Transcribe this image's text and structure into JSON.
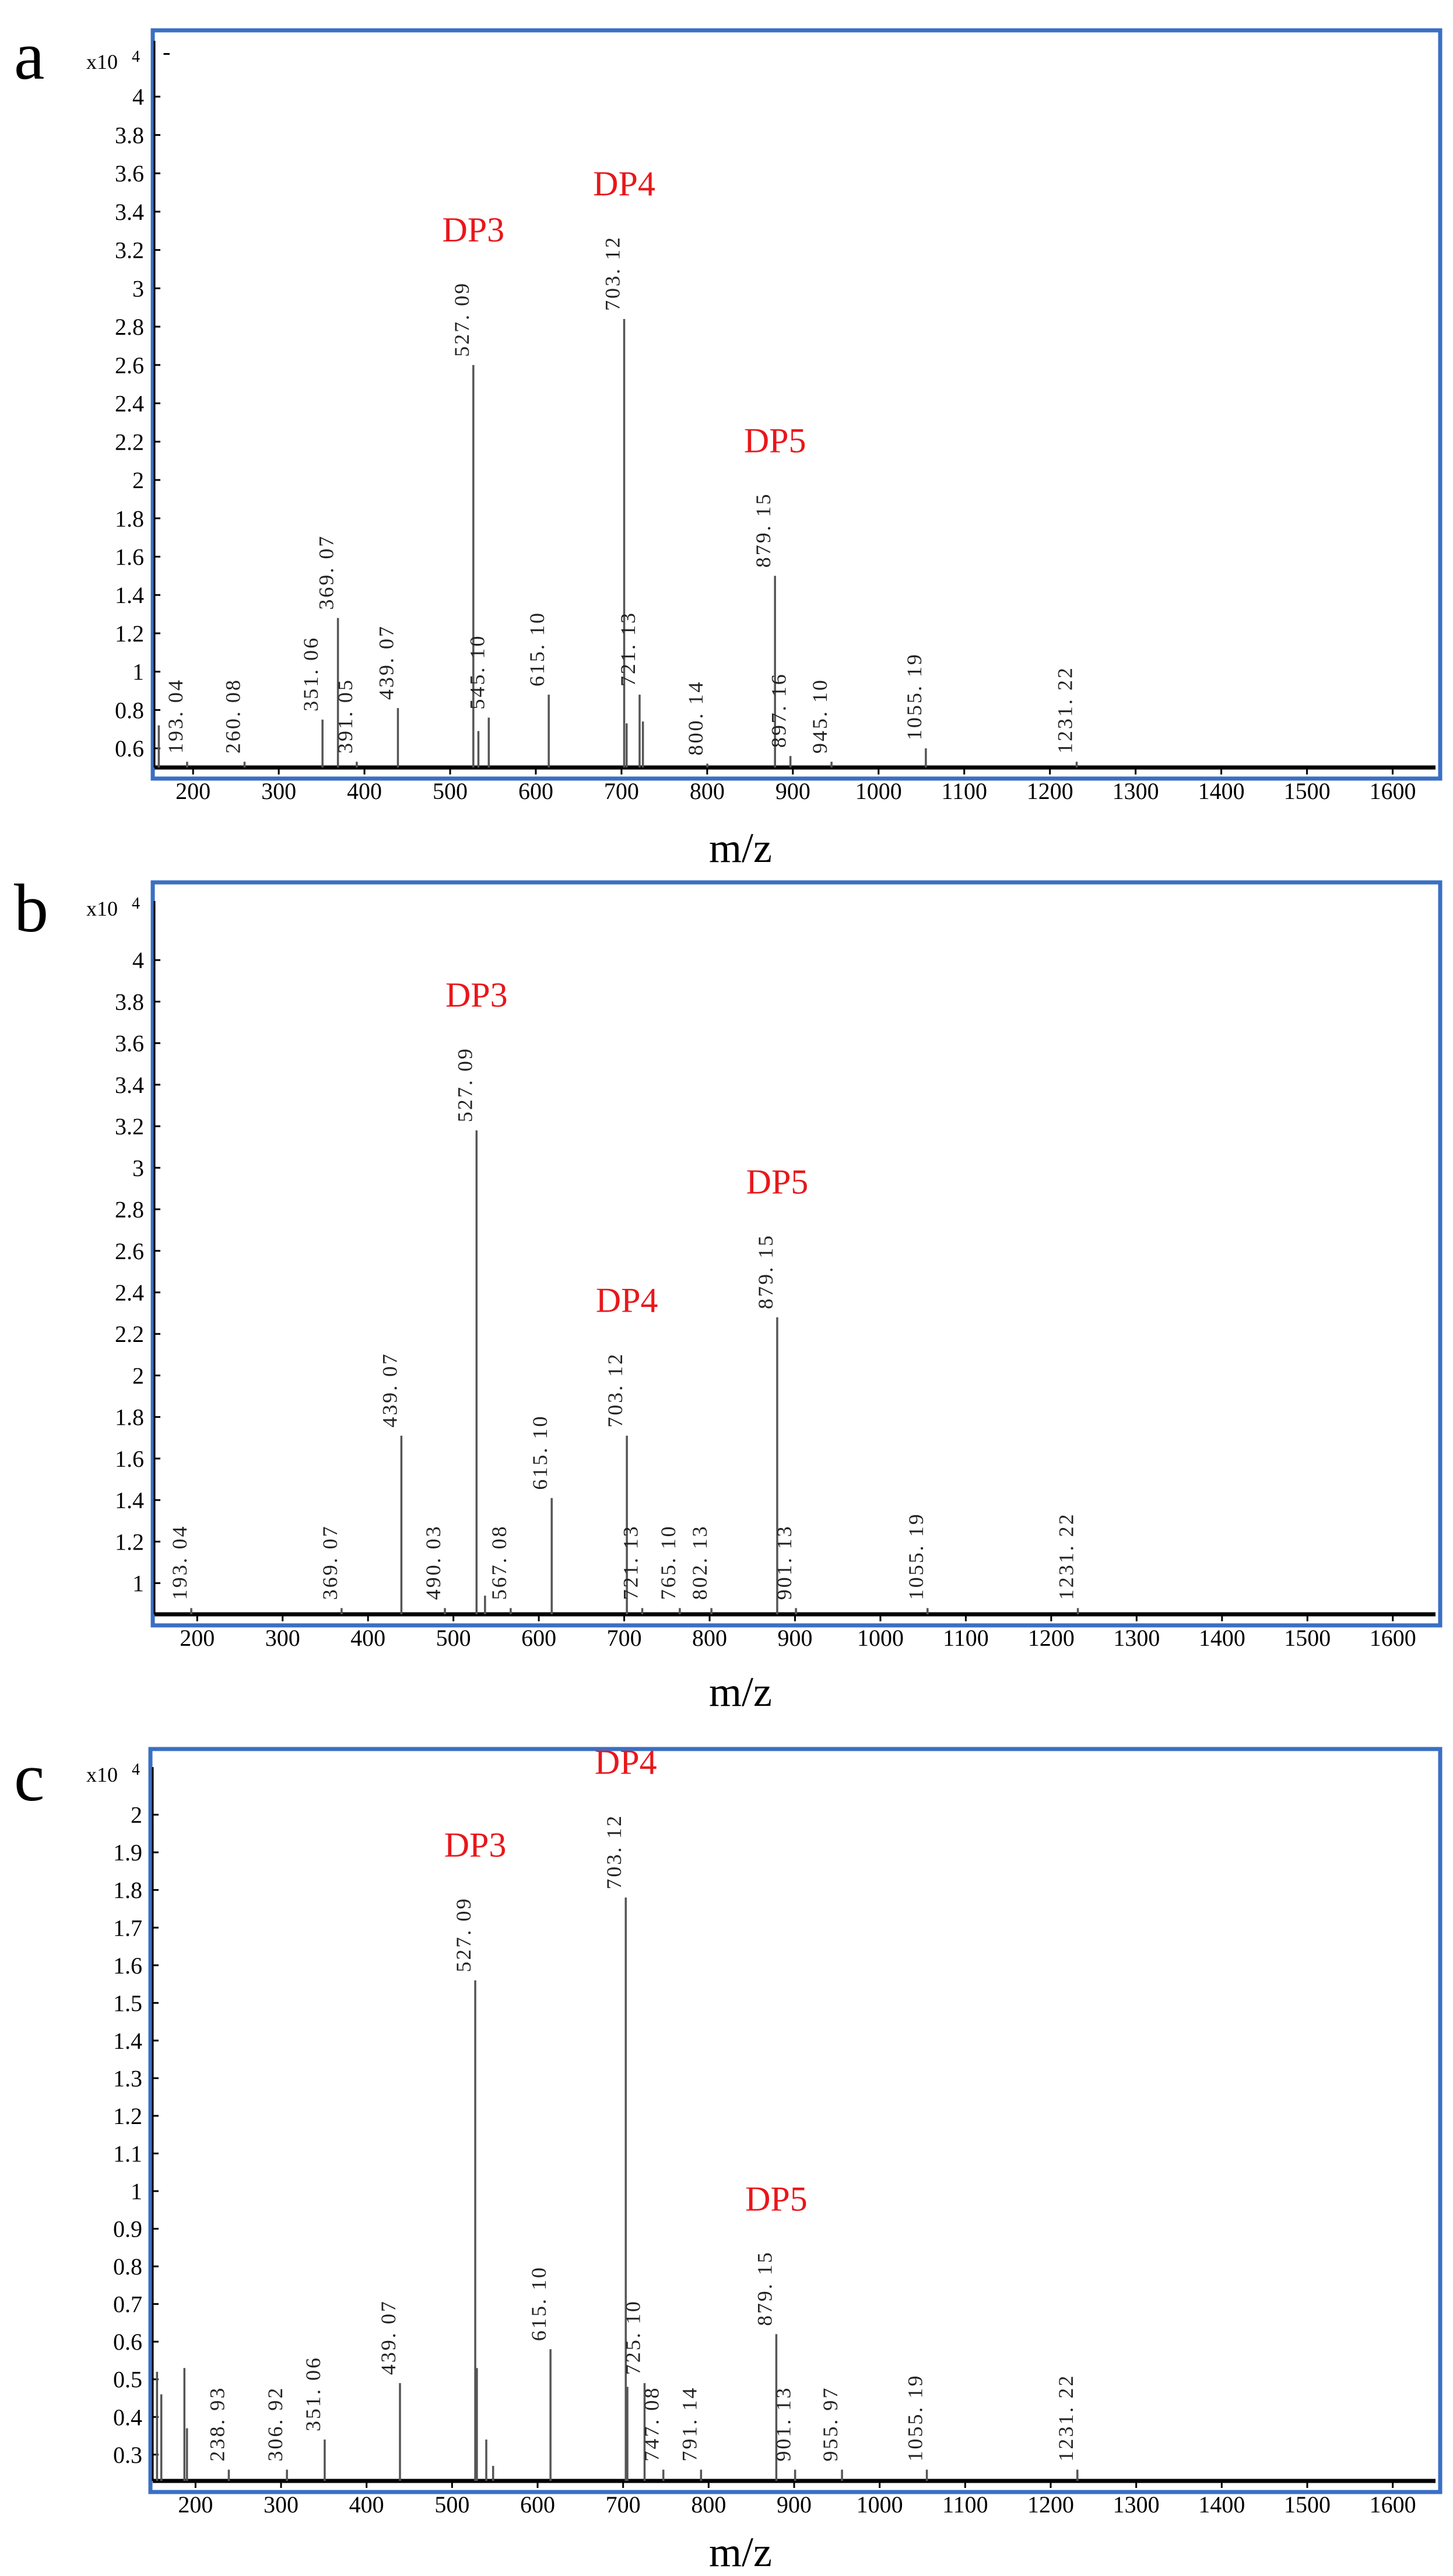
{
  "chart_data": [
    {
      "type": "bar",
      "panel": "a",
      "xlabel": "m/z",
      "y_multiplier": "x10",
      "y_multiplier_exp": "4",
      "xlim": [
        155,
        1650
      ],
      "ylim": [
        0.5,
        4.2
      ],
      "xticks": [
        200,
        300,
        400,
        500,
        600,
        700,
        800,
        900,
        1000,
        1100,
        1200,
        1300,
        1400,
        1500,
        1600
      ],
      "yticks": [
        0.6,
        0.8,
        1,
        1.2,
        1.4,
        1.6,
        1.8,
        2,
        2.2,
        2.4,
        2.6,
        2.8,
        3,
        3.2,
        3.4,
        3.6,
        3.8,
        4
      ],
      "ytick_labels": [
        "0.6",
        "0.8",
        "1",
        "1.2",
        "1.4",
        "1.6",
        "1.8",
        "2",
        "2.2",
        "2.4",
        "2.6",
        "2.8",
        "3",
        "3.2",
        "3.4",
        "3.6",
        "3.8",
        "4"
      ],
      "top_marker": "-",
      "peaks": [
        {
          "x": 160,
          "y": 0.72,
          "label": ""
        },
        {
          "x": 193.04,
          "y": 0.53,
          "label": "193. 04"
        },
        {
          "x": 260.08,
          "y": 0.53,
          "label": "260. 08"
        },
        {
          "x": 351.06,
          "y": 0.75,
          "label": "351. 06"
        },
        {
          "x": 369.07,
          "y": 1.28,
          "label": "369. 07"
        },
        {
          "x": 391.05,
          "y": 0.53,
          "label": "391. 05"
        },
        {
          "x": 439.07,
          "y": 0.81,
          "label": "439. 07"
        },
        {
          "x": 527.09,
          "y": 2.6,
          "label": "527. 09"
        },
        {
          "x": 533,
          "y": 0.69,
          "label": ""
        },
        {
          "x": 545.1,
          "y": 0.76,
          "label": "545. 10"
        },
        {
          "x": 615.1,
          "y": 0.88,
          "label": "615. 10"
        },
        {
          "x": 703.12,
          "y": 2.84,
          "label": "703. 12"
        },
        {
          "x": 706,
          "y": 0.73,
          "label": ""
        },
        {
          "x": 721.13,
          "y": 0.88,
          "label": "721. 13"
        },
        {
          "x": 725,
          "y": 0.74,
          "label": ""
        },
        {
          "x": 800.14,
          "y": 0.52,
          "label": "800. 14"
        },
        {
          "x": 879.15,
          "y": 1.5,
          "label": "879. 15"
        },
        {
          "x": 897.16,
          "y": 0.56,
          "label": "897. 16"
        },
        {
          "x": 945.1,
          "y": 0.53,
          "label": "945. 10"
        },
        {
          "x": 1055.19,
          "y": 0.6,
          "label": "1055. 19"
        },
        {
          "x": 1231.22,
          "y": 0.53,
          "label": "1231. 22"
        }
      ],
      "annotations": [
        {
          "text": "DP3",
          "x": 527.09,
          "y": 2.6
        },
        {
          "text": "DP4",
          "x": 703.12,
          "y": 2.84
        },
        {
          "text": "DP5",
          "x": 879.15,
          "y": 1.5
        }
      ]
    },
    {
      "type": "bar",
      "panel": "b",
      "xlabel": "m/z",
      "y_multiplier": "x10",
      "y_multiplier_exp": "4",
      "xlim": [
        150,
        1650
      ],
      "ylim": [
        0.85,
        4.2
      ],
      "xticks": [
        200,
        300,
        400,
        500,
        600,
        700,
        800,
        900,
        1000,
        1100,
        1200,
        1300,
        1400,
        1500,
        1600
      ],
      "yticks": [
        1,
        1.2,
        1.4,
        1.6,
        1.8,
        2,
        2.2,
        2.4,
        2.6,
        2.8,
        3,
        3.2,
        3.4,
        3.6,
        3.8,
        4
      ],
      "ytick_labels": [
        "1",
        "1.2",
        "1.4",
        "1.6",
        "1.8",
        "2",
        "2.2",
        "2.4",
        "2.6",
        "2.8",
        "3",
        "3.2",
        "3.4",
        "3.6",
        "3.8",
        "4"
      ],
      "top_marker": "",
      "peaks": [
        {
          "x": 193.04,
          "y": 0.88,
          "label": "193. 04"
        },
        {
          "x": 369.07,
          "y": 0.88,
          "label": "369. 07"
        },
        {
          "x": 439.07,
          "y": 1.71,
          "label": "439. 07"
        },
        {
          "x": 490.03,
          "y": 0.88,
          "label": "490. 03"
        },
        {
          "x": 527.09,
          "y": 3.18,
          "label": "527. 09"
        },
        {
          "x": 537,
          "y": 0.94,
          "label": ""
        },
        {
          "x": 567.08,
          "y": 0.88,
          "label": "567. 08"
        },
        {
          "x": 615.1,
          "y": 1.41,
          "label": "615. 10"
        },
        {
          "x": 703.12,
          "y": 1.71,
          "label": "703. 12"
        },
        {
          "x": 721.13,
          "y": 0.88,
          "label": "721. 13"
        },
        {
          "x": 765.1,
          "y": 0.88,
          "label": "765. 10"
        },
        {
          "x": 802.13,
          "y": 0.88,
          "label": "802. 13"
        },
        {
          "x": 879.15,
          "y": 2.28,
          "label": "879. 15"
        },
        {
          "x": 901.13,
          "y": 0.88,
          "label": "901. 13"
        },
        {
          "x": 1055.19,
          "y": 0.88,
          "label": "1055. 19"
        },
        {
          "x": 1231.22,
          "y": 0.88,
          "label": "1231. 22"
        }
      ],
      "annotations": [
        {
          "text": "DP3",
          "x": 527.09,
          "y": 3.18
        },
        {
          "text": "DP4",
          "x": 703.12,
          "y": 1.71
        },
        {
          "text": "DP5",
          "x": 879.15,
          "y": 2.28
        }
      ]
    },
    {
      "type": "bar",
      "panel": "c",
      "xlabel": "m/z",
      "y_multiplier": "x10",
      "y_multiplier_exp": "4",
      "xlim": [
        150,
        1650
      ],
      "ylim": [
        0.23,
        2.08
      ],
      "xticks": [
        200,
        300,
        400,
        500,
        600,
        700,
        800,
        900,
        1000,
        1100,
        1200,
        1300,
        1400,
        1500,
        1600
      ],
      "yticks": [
        0.3,
        0.4,
        0.5,
        0.6,
        0.7,
        0.8,
        0.9,
        1,
        1.1,
        1.2,
        1.3,
        1.4,
        1.5,
        1.6,
        1.7,
        1.8,
        1.9,
        2
      ],
      "ytick_labels": [
        "0.3",
        "0.4",
        "0.5",
        "0.6",
        "0.7",
        "0.8",
        "0.9",
        "1",
        "1.1",
        "1.2",
        "1.3",
        "1.4",
        "1.5",
        "1.6",
        "1.7",
        "1.8",
        "1.9",
        "2"
      ],
      "top_marker": "",
      "peaks": [
        {
          "x": 155,
          "y": 0.52,
          "label": ""
        },
        {
          "x": 160,
          "y": 0.46,
          "label": ""
        },
        {
          "x": 187,
          "y": 0.53,
          "label": ""
        },
        {
          "x": 190,
          "y": 0.37,
          "label": ""
        },
        {
          "x": 238.93,
          "y": 0.26,
          "label": "238. 93"
        },
        {
          "x": 306.92,
          "y": 0.26,
          "label": "306. 92"
        },
        {
          "x": 351.06,
          "y": 0.34,
          "label": "351. 06"
        },
        {
          "x": 439.07,
          "y": 0.49,
          "label": "439. 07"
        },
        {
          "x": 527.09,
          "y": 1.56,
          "label": "527. 09"
        },
        {
          "x": 529,
          "y": 0.53,
          "label": ""
        },
        {
          "x": 540,
          "y": 0.34,
          "label": ""
        },
        {
          "x": 548,
          "y": 0.27,
          "label": ""
        },
        {
          "x": 615.1,
          "y": 0.58,
          "label": "615. 10"
        },
        {
          "x": 703.12,
          "y": 1.78,
          "label": "703. 12"
        },
        {
          "x": 705,
          "y": 0.48,
          "label": ""
        },
        {
          "x": 725.1,
          "y": 0.49,
          "label": "725. 10"
        },
        {
          "x": 747.08,
          "y": 0.26,
          "label": "747. 08"
        },
        {
          "x": 791.14,
          "y": 0.26,
          "label": "791. 14"
        },
        {
          "x": 879.15,
          "y": 0.62,
          "label": "879. 15"
        },
        {
          "x": 901.13,
          "y": 0.26,
          "label": "901. 13"
        },
        {
          "x": 955.97,
          "y": 0.26,
          "label": "955. 97"
        },
        {
          "x": 1055.19,
          "y": 0.26,
          "label": "1055. 19"
        },
        {
          "x": 1231.22,
          "y": 0.26,
          "label": "1231. 22"
        }
      ],
      "annotations": [
        {
          "text": "DP3",
          "x": 527.09,
          "y": 1.56
        },
        {
          "text": "DP4",
          "x": 703.12,
          "y": 1.78
        },
        {
          "text": "DP5",
          "x": 879.15,
          "y": 0.62
        }
      ]
    }
  ]
}
